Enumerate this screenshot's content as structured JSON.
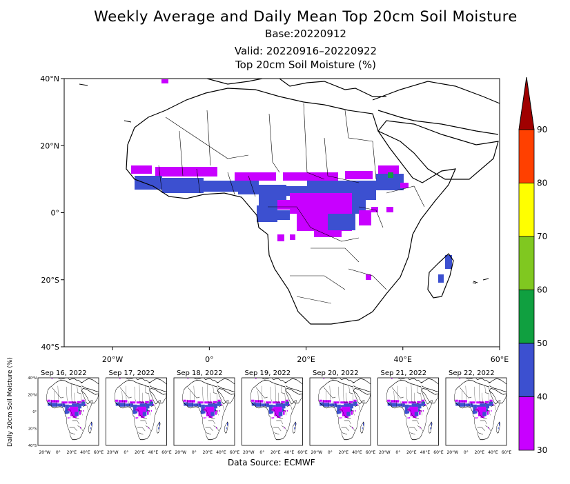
{
  "title": "Weekly Average and Daily Mean Top 20cm Soil Moisture",
  "base": "Base:20220912",
  "valid": "Valid: 20220916–20220922",
  "subtitle": "Top 20cm Soil Moisture (%)",
  "map": {
    "lon_range": [
      -30,
      60
    ],
    "lat_range": [
      -40,
      40
    ],
    "lat_ticks": [
      "40°N",
      "20°N",
      "0°",
      "20°S",
      "40°S"
    ],
    "lon_ticks": [
      "20°W",
      "0°",
      "20°E",
      "40°E",
      "60°E"
    ]
  },
  "colorbar": {
    "labels": [
      "90",
      "80",
      "70",
      "60",
      "50",
      "40",
      "30"
    ],
    "colors": [
      "#a00000",
      "#ff4000",
      "#ffff00",
      "#80c820",
      "#10a040",
      "#3c50d0",
      "#c800ff"
    ]
  },
  "daily": {
    "ylabel": "Daily 20cm Soil Moisture (%)",
    "panels": [
      "Sep 16, 2022",
      "Sep 17, 2022",
      "Sep 18, 2022",
      "Sep 19, 2022",
      "Sep 20, 2022",
      "Sep 21, 2022",
      "Sep 22, 2022"
    ],
    "lat_ticks": [
      "40°N",
      "20°N",
      "0°",
      "20°S",
      "40°S"
    ],
    "lon_ticks": [
      "20°W",
      "0°",
      "20°E",
      "40°E",
      "60°E"
    ]
  },
  "source": "Data Source: ECMWF"
}
